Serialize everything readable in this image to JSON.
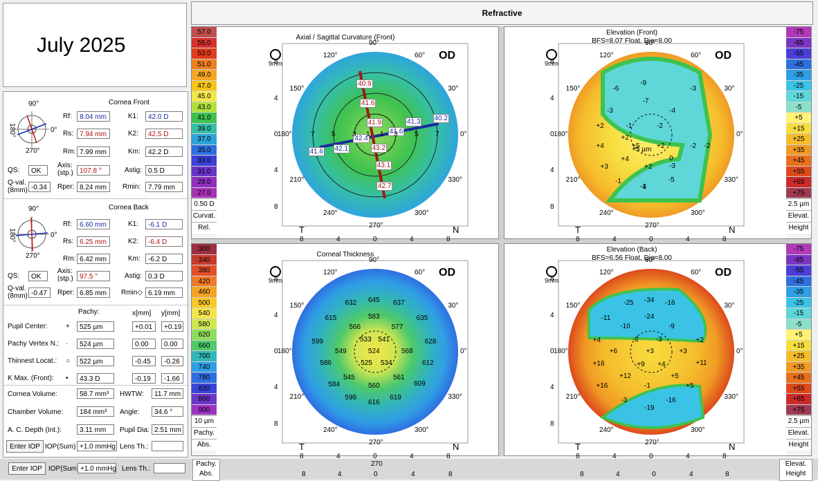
{
  "date_label": "July 2025",
  "header": {
    "title": "Refractive"
  },
  "cornea_front": {
    "title": "Cornea Front",
    "rf_label": "Rf:",
    "rf": "8.04 mm",
    "rs_label": "Rs:",
    "rs": "7.94 mm",
    "rm_label": "Rm:",
    "rm": "7.99 mm",
    "k1_label": "K1:",
    "k1": "42.0 D",
    "k2_label": "K2:",
    "k2": "42.5 D",
    "km_label": "Km:",
    "km": "42.2 D",
    "qs_label": "QS:",
    "qs": "OK",
    "axis_label": "Axis:",
    "axis_sub": "(stp.)",
    "axis": "107.8 °",
    "astig_label": "Astig:",
    "astig": "0.5 D",
    "qval_label": "Q-val.",
    "qval_sub": "(8mm)",
    "qval": "-0.34",
    "rper_label": "Rper:",
    "rper": "8.24 mm",
    "rmin_label": "Rmin:",
    "rmin": "7.79 mm"
  },
  "cornea_back": {
    "title": "Cornea Back",
    "rf_label": "Rf:",
    "rf": "6.60 mm",
    "rs_label": "Rs:",
    "rs": "6.25 mm",
    "rm_label": "Rm:",
    "rm": "6.42 mm",
    "k1_label": "K1:",
    "k1": "-6.1 D",
    "k2_label": "K2:",
    "k2": "-6.4 D",
    "km_label": "Km:",
    "km": "-6.2 D",
    "qs_label": "QS:",
    "qs": "OK",
    "axis_label": "Axis:",
    "axis_sub": "(stp.)",
    "axis": "97.5 °",
    "astig_label": "Astig:",
    "astig": "0.3 D",
    "qval_label": "Q-val.",
    "qval_sub": "(8mm)",
    "qval": "-0.47",
    "rper_label": "Rper:",
    "rper": "6.85 mm",
    "rmin_label": "Rmin◇",
    "rmin": "6.19 mm"
  },
  "dial": {
    "top": "90°",
    "bottom": "270°",
    "left": "180°",
    "right": "0°"
  },
  "pachy": {
    "col_pachy": "Pachy:",
    "col_x": "x[mm]",
    "col_y": "y[mm]",
    "rows": [
      {
        "label": "Pupil Center:",
        "sym": "+",
        "pachy": "525 µm",
        "x": "+0.01",
        "y": "+0.19"
      },
      {
        "label": "Pachy Vertex N.:",
        "sym": "·",
        "pachy": "524 µm",
        "x": "0.00",
        "y": "0.00"
      },
      {
        "label": "Thinnest Locat.:",
        "sym": "○",
        "pachy": "522 µm",
        "x": "-0.45",
        "y": "-0.26"
      },
      {
        "label": "K Max. (Front):",
        "sym": "•",
        "pachy": "43.3 D",
        "x": "-0.19",
        "y": "-1.66"
      }
    ]
  },
  "volumes": {
    "cornea_volume_label": "Cornea Volume:",
    "cornea_volume": "58.7 mm³",
    "hwtw_label": "HWTW:",
    "hwtw": "11.7 mm",
    "chamber_volume_label": "Chamber Volume:",
    "chamber_volume": "184 mm³",
    "angle_label": "Angle:",
    "angle": "34.6 °",
    "ac_depth_label": "A. C. Depth (Int.):",
    "ac_depth": "3.11 mm",
    "pupil_dia_label": "Pupil Dia:",
    "pupil_dia": "2.51 mm"
  },
  "iop": {
    "enter_iop": "Enter IOP",
    "iop_label": "IOP(Sum)",
    "iop_value": "+1.0 mmHg",
    "lens_label": "Lens Th.:",
    "lens_value": ""
  },
  "maps": {
    "axial": {
      "title": "Axial / Sagittal Curvature (Front)",
      "eye": "OD",
      "zoom": "9mm",
      "legend": [
        "57.0",
        "55.0",
        "53.0",
        "51.0",
        "49.0",
        "47.0",
        "45.0",
        "43.0",
        "41.0",
        "39.0",
        "37.0",
        "35.0",
        "33.0",
        "31.0",
        "29.0",
        "27.0"
      ],
      "legend_colors": [
        "#c0504d",
        "#d8302e",
        "#e03b1c",
        "#ee7f1e",
        "#f5a623",
        "#f5c518",
        "#f3e84a",
        "#aee13c",
        "#3fc24f",
        "#35bfa8",
        "#2fa4dc",
        "#2f6fde",
        "#3d3fd8",
        "#6a34c9",
        "#8f2fc0",
        "#a732b6"
      ],
      "legend_step": "0.50 D",
      "legend_foot1": "Curvat.",
      "legend_foot2": "Rel.",
      "values": [
        "40.9",
        "41.6",
        "41.9",
        "41.6",
        "41.3",
        "40.2",
        "42.4",
        "42.1",
        "41.6",
        "43.2",
        "43.1",
        "42.7"
      ],
      "ring_labels": [
        "7",
        "5",
        "3",
        "1",
        "1",
        "3",
        "5",
        "7"
      ]
    },
    "elev_front": {
      "title": "Elevation (Front)",
      "subtitle": "BFS=8.07 Float, Dia=8.00",
      "eye": "OD",
      "zoom": "9mm",
      "legend": [
        "-75",
        "-65",
        "-55",
        "-45",
        "-35",
        "-25",
        "-15",
        "-5",
        "+5",
        "+15",
        "+25",
        "+35",
        "+45",
        "+55",
        "+65",
        "+75"
      ],
      "legend_colors": [
        "#b03ab8",
        "#7a35c2",
        "#4a3fd8",
        "#2f6fde",
        "#2f9ee6",
        "#3bc3e6",
        "#5fd7d8",
        "#8ce0c8",
        "#fff275",
        "#f7dd3f",
        "#f5bc2c",
        "#f09a24",
        "#e8701c",
        "#dc4a1c",
        "#cc2a2a",
        "#9e3a52"
      ],
      "legend_step": "2.5 µm",
      "legend_foot1": "Elevat.",
      "legend_foot2": "Height",
      "values": [
        "-6",
        "-9",
        "-3",
        "-7",
        "-3",
        "-4",
        "+2",
        "-1",
        "-2",
        "+2",
        "+4",
        "+5",
        "+2",
        "-2",
        "+4",
        "-2",
        "+5 µm",
        "+3",
        "-1",
        "-3",
        "-1",
        "-4",
        "-5",
        "0",
        "+2"
      ]
    },
    "thickness": {
      "title": "Corneal Thickness",
      "eye": "OD",
      "zoom": "9mm",
      "legend": [
        "300",
        "340",
        "380",
        "420",
        "460",
        "500",
        "540",
        "580",
        "620",
        "660",
        "700",
        "740",
        "780",
        "820",
        "860",
        "900"
      ],
      "legend_colors": [
        "#9b3040",
        "#c63a2d",
        "#e0502a",
        "#ef7a25",
        "#f6a325",
        "#f8c928",
        "#f4e54a",
        "#cfe651",
        "#8fdc5a",
        "#4ec96a",
        "#33b6b6",
        "#2f9ee6",
        "#2f6ee0",
        "#3b45d8",
        "#6a36c8",
        "#9c33c2"
      ],
      "legend_step": "10 µm",
      "legend_foot1": "Pachy.",
      "legend_foot2": "Abs.",
      "values": [
        "632",
        "645",
        "637",
        "615",
        "583",
        "635",
        "566",
        "577",
        "599",
        "533",
        "541",
        "628",
        "549",
        "524",
        "568",
        "586",
        "525",
        "534",
        "612",
        "545",
        "561",
        "609",
        "584",
        "560",
        "599",
        "619",
        "616"
      ]
    },
    "elev_back": {
      "title": "Elevation (Back)",
      "subtitle": "BFS=6.56 Float, Dia=8.00",
      "eye": "OD",
      "zoom": "9mm",
      "legend": [
        "-75",
        "-65",
        "-55",
        "-45",
        "-35",
        "-25",
        "-15",
        "-5",
        "+5",
        "+15",
        "+25",
        "+35",
        "+45",
        "+55",
        "+65",
        "+75"
      ],
      "legend_colors": [
        "#b03ab8",
        "#7a35c2",
        "#4a3fd8",
        "#2f6fde",
        "#2f9ee6",
        "#3bc3e6",
        "#5fd7d8",
        "#8ce0c8",
        "#fff275",
        "#f7dd3f",
        "#f5bc2c",
        "#f09a24",
        "#e8701c",
        "#dc4a1c",
        "#cc2a2a",
        "#9e3a52"
      ],
      "legend_step": "2.5 µm",
      "legend_foot1": "Elevat.",
      "legend_foot2": "Height",
      "values": [
        "-25",
        "-34",
        "-16",
        "-11",
        "-24",
        "-10",
        "-9",
        "+4",
        "-2",
        "-3",
        "+2",
        "+6",
        "+3",
        "+3",
        "+11",
        "+16",
        "+9",
        "+4",
        "+12",
        "+5",
        "+16",
        "-3",
        "-1",
        "+5",
        "-19",
        "-16"
      ]
    }
  },
  "axis_ticks": {
    "deg_90": "90°",
    "deg_270": "270°",
    "deg_180": "180°",
    "deg_0": "0°",
    "deg_120": "120°",
    "deg_60": "60°",
    "deg_150": "150°",
    "deg_30": "30°",
    "deg_210": "210°",
    "deg_330": "330°",
    "deg_240": "240°",
    "deg_300": "300°",
    "y_labels": [
      "8",
      "4",
      "0",
      "4",
      "8"
    ],
    "x_labels": [
      "8",
      "4",
      "0",
      "4",
      "8"
    ],
    "t": "T",
    "n": "N"
  },
  "footer": {
    "pachy": "Pachy.",
    "abs": "Abs.",
    "t270": "270",
    "x_labels": [
      "8",
      "4",
      "0",
      "4",
      "8"
    ],
    "elevat": "Elevat.",
    "height": "Height",
    "enter_iop": "Enter IOP",
    "iop_label": "IOP(Sum)",
    "iop_value": "+1.0 mmHg",
    "lens_label": "Lens Th.:"
  }
}
